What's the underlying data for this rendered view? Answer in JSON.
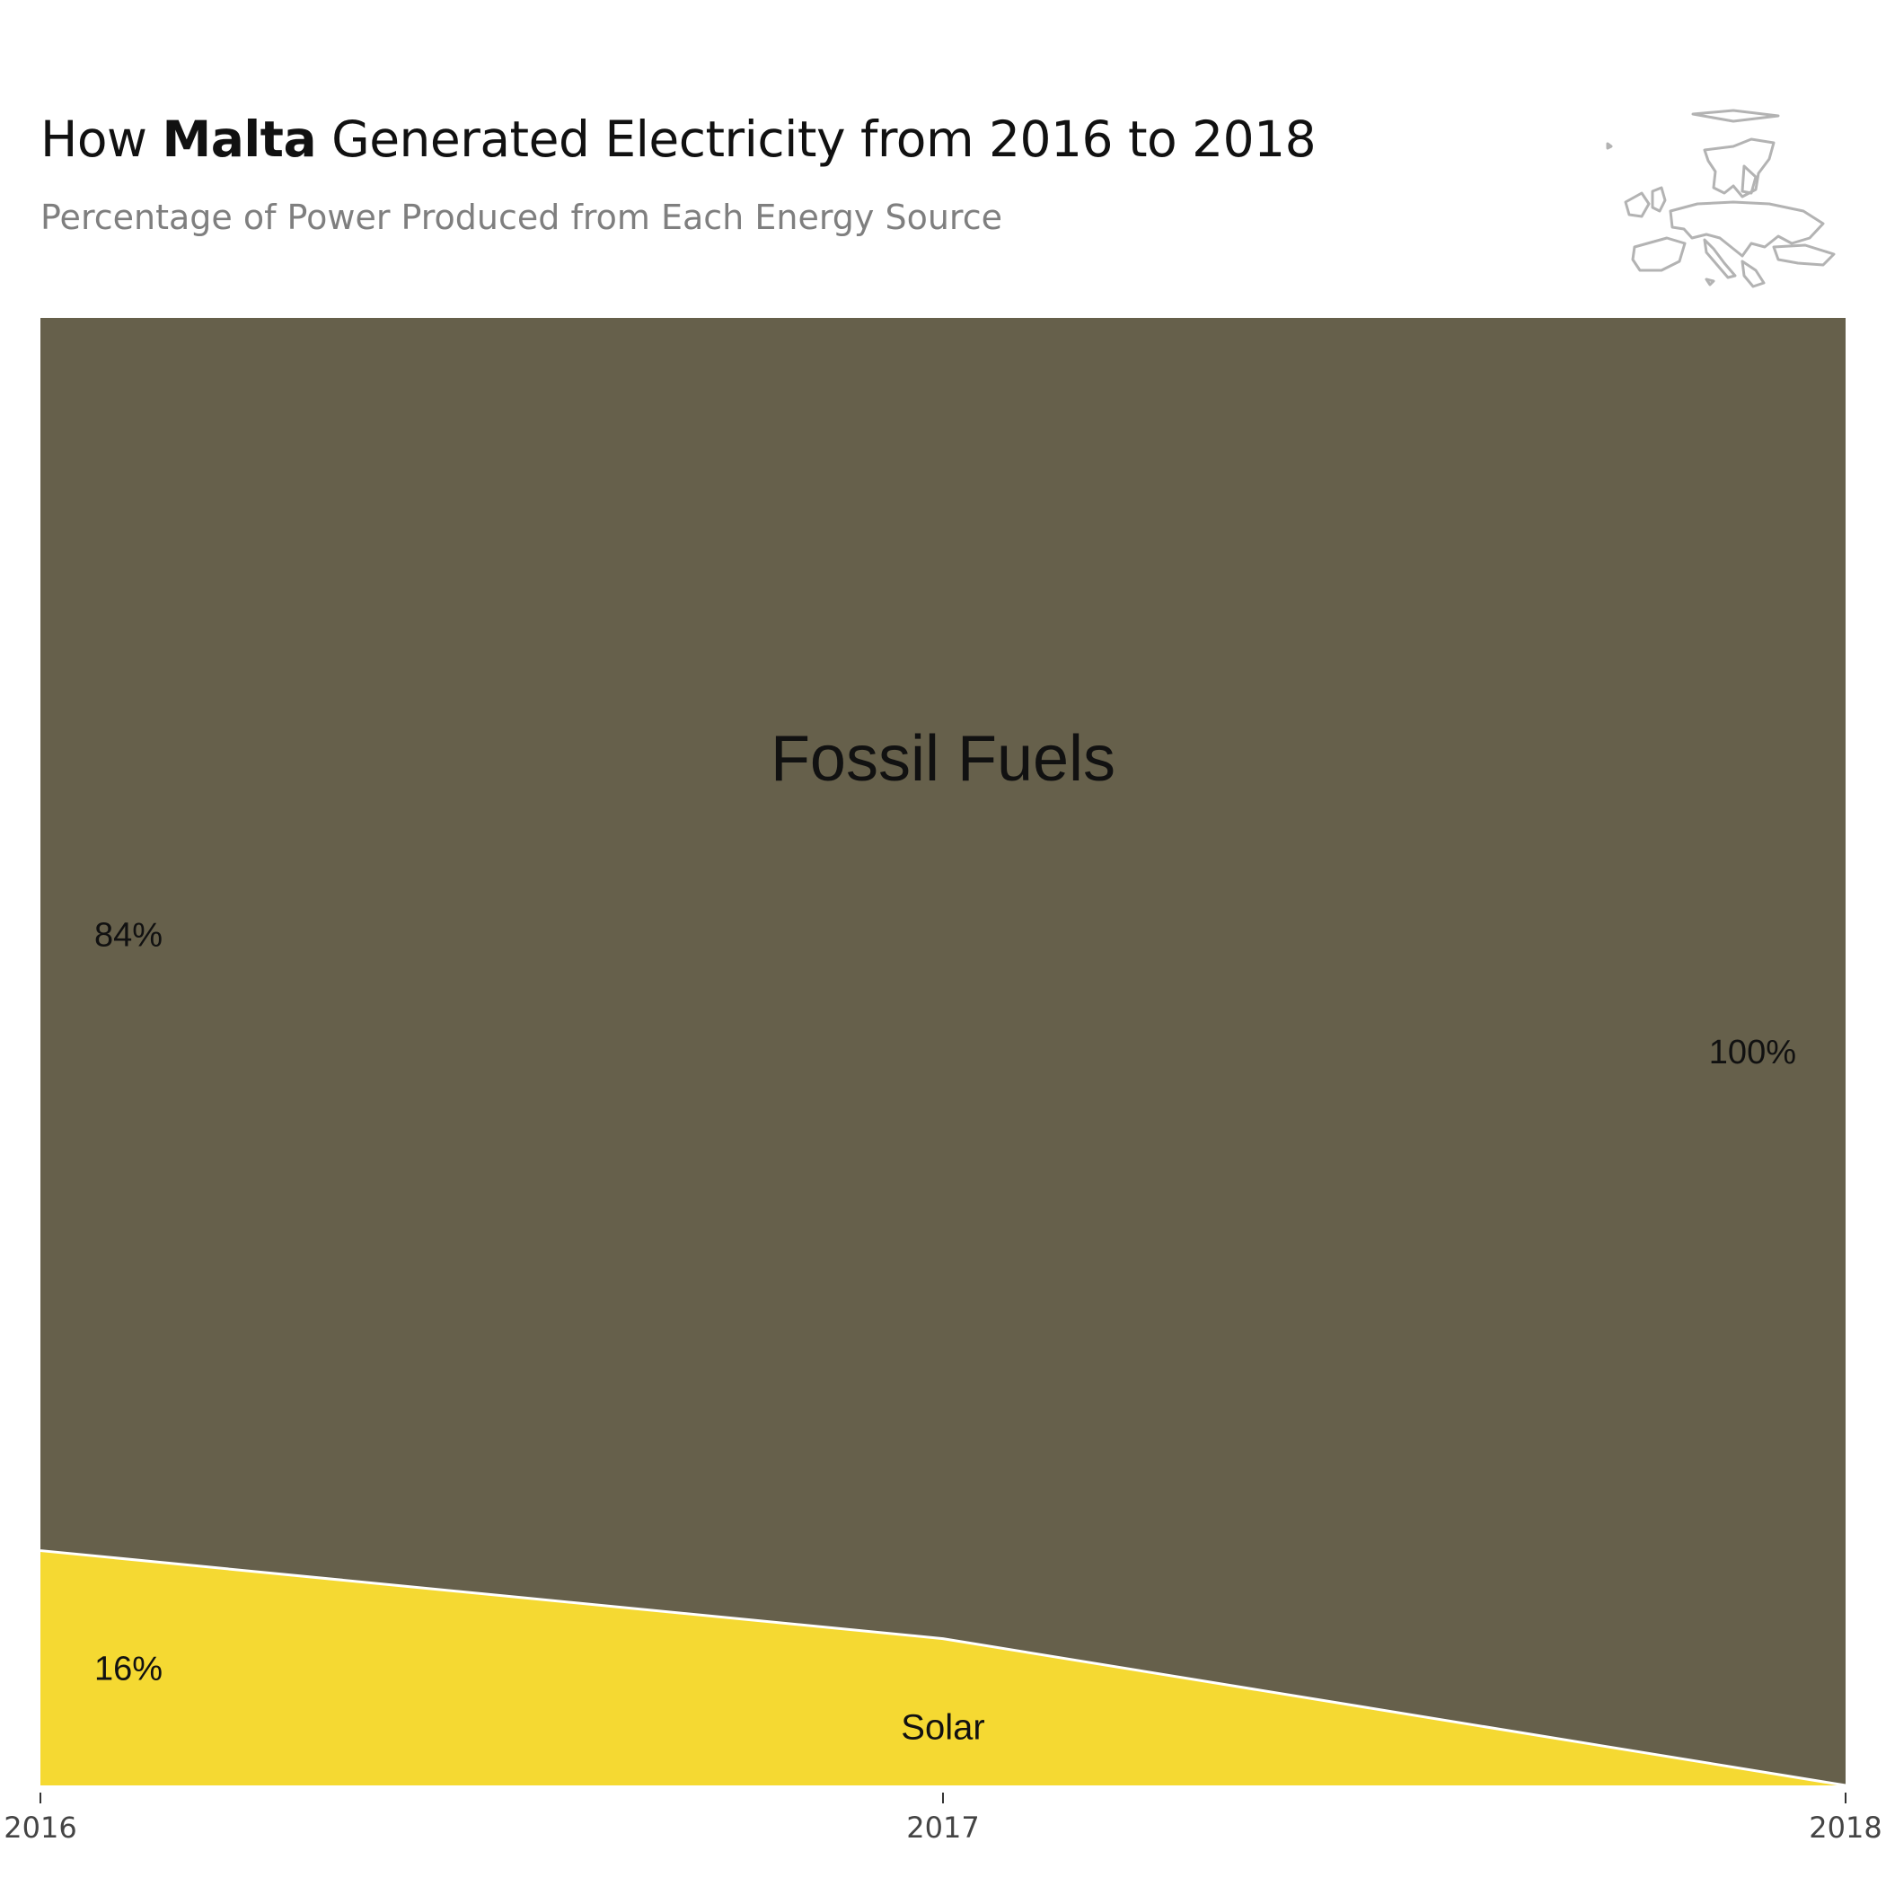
{
  "header": {
    "title_prefix": "How ",
    "title_country": "Malta",
    "title_suffix": " Generated Electricity from 2016 to 2018",
    "subtitle": "Percentage of Power Produced from Each Energy Source"
  },
  "logo": {
    "icon": "europe-map-icon",
    "color": "#b3b3b3"
  },
  "chart_data": {
    "type": "area",
    "stacked": true,
    "normalized": true,
    "x": [
      2016,
      2017,
      2018
    ],
    "xlim": [
      2016,
      2018
    ],
    "ylim": [
      0,
      100
    ],
    "x_tick_labels": [
      "2016",
      "2017",
      "2018"
    ],
    "series": [
      {
        "name": "Solar",
        "values": [
          16,
          10,
          0
        ],
        "color": "#f5d932"
      },
      {
        "name": "Fossil Fuels",
        "values": [
          84,
          90,
          100
        ],
        "color": "#66604b"
      }
    ],
    "annotations": {
      "start_labels": [
        {
          "series": "Fossil Fuels",
          "text": "84%"
        },
        {
          "series": "Solar",
          "text": "16%"
        }
      ],
      "end_labels": [
        {
          "series": "Fossil Fuels",
          "text": "100%"
        }
      ],
      "series_labels": [
        {
          "series": "Fossil Fuels",
          "text": "Fossil Fuels"
        },
        {
          "series": "Solar",
          "text": "Solar"
        }
      ]
    },
    "grid": false,
    "legend": "none"
  }
}
